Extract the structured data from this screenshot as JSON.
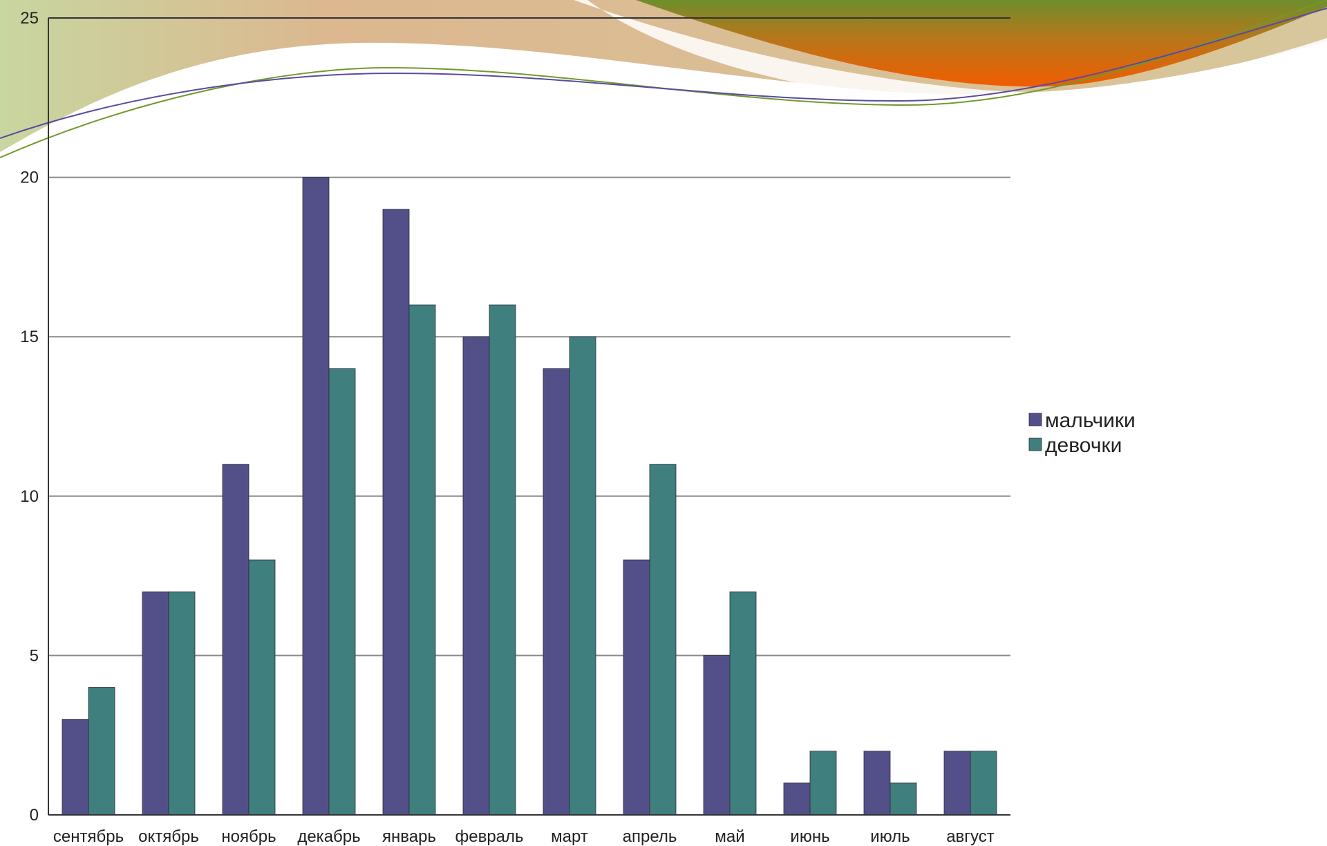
{
  "colors": {
    "series_1": "#535089",
    "series_2": "#3f7f7e",
    "gridline": "#8a8a8a",
    "axis": "#333333",
    "text": "#222222",
    "decor_tan": "#d9b48e",
    "decor_green": "#cbd58e",
    "decor_olive": "#7a8a2a",
    "decor_orange": "#f06000",
    "decor_line_green": "#6f9a2a",
    "decor_line_purple": "#5b4aa0"
  },
  "chart_data": {
    "type": "bar",
    "categories": [
      "сентябрь",
      "октябрь",
      "ноябрь",
      "декабрь",
      "январь",
      "февраль",
      "март",
      "апрель",
      "май",
      "июнь",
      "июль",
      "август"
    ],
    "series": [
      {
        "name": "мальчики",
        "color": "#535089",
        "values": [
          3,
          7,
          11,
          20,
          19,
          15,
          14,
          8,
          5,
          1,
          2,
          2
        ]
      },
      {
        "name": "девочки",
        "color": "#3f7f7e",
        "values": [
          4,
          7,
          8,
          14,
          16,
          16,
          15,
          11,
          7,
          2,
          1,
          2
        ]
      }
    ],
    "ylim": [
      0,
      25
    ],
    "yticks": [
      "0",
      "5",
      "10",
      "15",
      "20",
      "25"
    ],
    "grid": true,
    "legend_position": "right"
  }
}
